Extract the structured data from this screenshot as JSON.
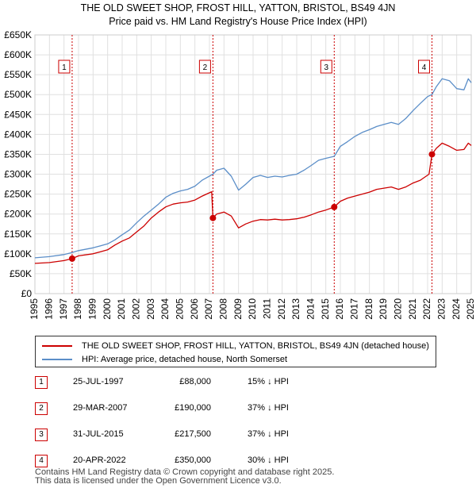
{
  "title_line1": "THE OLD SWEET SHOP, FROST HILL, YATTON, BRISTOL, BS49 4JN",
  "title_line2": "Price paid vs. HM Land Registry's House Price Index (HPI)",
  "colors": {
    "property": "#cc0000",
    "hpi": "#5b8ec8",
    "grid": "#e0e0e0",
    "vline": "#cc0000"
  },
  "chart_data": {
    "type": "line",
    "xlim": [
      1995,
      2025
    ],
    "ylim": [
      0,
      650000
    ],
    "xticks": [
      1995,
      1996,
      1997,
      1998,
      1999,
      2000,
      2001,
      2002,
      2003,
      2004,
      2005,
      2006,
      2007,
      2008,
      2009,
      2010,
      2011,
      2012,
      2013,
      2014,
      2015,
      2016,
      2017,
      2018,
      2019,
      2020,
      2021,
      2022,
      2023,
      2024,
      2025
    ],
    "yticks": [
      0,
      50000,
      100000,
      150000,
      200000,
      250000,
      300000,
      350000,
      400000,
      450000,
      500000,
      550000,
      600000,
      650000
    ],
    "ytick_labels": [
      "£0",
      "£50K",
      "£100K",
      "£150K",
      "£200K",
      "£250K",
      "£300K",
      "£350K",
      "£400K",
      "£450K",
      "£500K",
      "£550K",
      "£600K",
      "£650K"
    ],
    "series": [
      {
        "name": "THE OLD SWEET SHOP, FROST HILL, YATTON, BRISTOL, BS49 4JN (detached house)",
        "color": "#cc0000",
        "points": [
          [
            1995,
            76000
          ],
          [
            1996,
            78000
          ],
          [
            1997,
            83000
          ],
          [
            1997.56,
            88000
          ],
          [
            1998,
            95000
          ],
          [
            1999,
            100000
          ],
          [
            2000,
            110000
          ],
          [
            2000.5,
            122000
          ],
          [
            2001,
            132000
          ],
          [
            2001.5,
            140000
          ],
          [
            2002,
            155000
          ],
          [
            2002.5,
            170000
          ],
          [
            2003,
            190000
          ],
          [
            2003.5,
            205000
          ],
          [
            2004,
            218000
          ],
          [
            2004.5,
            225000
          ],
          [
            2005,
            228000
          ],
          [
            2005.5,
            230000
          ],
          [
            2006,
            235000
          ],
          [
            2006.5,
            245000
          ],
          [
            2007.15,
            256000
          ],
          [
            2007.24,
            190000
          ],
          [
            2007.5,
            200000
          ],
          [
            2008,
            205000
          ],
          [
            2008.5,
            195000
          ],
          [
            2009,
            165000
          ],
          [
            2009.5,
            175000
          ],
          [
            2010,
            182000
          ],
          [
            2010.5,
            186000
          ],
          [
            2011,
            185000
          ],
          [
            2011.5,
            187000
          ],
          [
            2012,
            185000
          ],
          [
            2012.5,
            186000
          ],
          [
            2013,
            188000
          ],
          [
            2013.5,
            192000
          ],
          [
            2014,
            198000
          ],
          [
            2014.5,
            205000
          ],
          [
            2015,
            210000
          ],
          [
            2015.58,
            217500
          ],
          [
            2016,
            232000
          ],
          [
            2016.5,
            240000
          ],
          [
            2017,
            245000
          ],
          [
            2017.5,
            250000
          ],
          [
            2018,
            255000
          ],
          [
            2018.5,
            262000
          ],
          [
            2019,
            265000
          ],
          [
            2019.5,
            268000
          ],
          [
            2020,
            262000
          ],
          [
            2020.5,
            268000
          ],
          [
            2021,
            278000
          ],
          [
            2021.5,
            285000
          ],
          [
            2022.1,
            300000
          ],
          [
            2022.3,
            350000
          ],
          [
            2022.6,
            365000
          ],
          [
            2023,
            378000
          ],
          [
            2023.5,
            370000
          ],
          [
            2024,
            360000
          ],
          [
            2024.5,
            362000
          ],
          [
            2024.8,
            378000
          ],
          [
            2025,
            372000
          ]
        ]
      },
      {
        "name": "HPI: Average price, detached house, North Somerset",
        "color": "#5b8ec8",
        "points": [
          [
            1995,
            90000
          ],
          [
            1996,
            93000
          ],
          [
            1997,
            98000
          ],
          [
            1997.56,
            103000
          ],
          [
            1998,
            108000
          ],
          [
            1999,
            115000
          ],
          [
            2000,
            125000
          ],
          [
            2000.5,
            135000
          ],
          [
            2001,
            148000
          ],
          [
            2001.5,
            160000
          ],
          [
            2002,
            178000
          ],
          [
            2002.5,
            195000
          ],
          [
            2003,
            210000
          ],
          [
            2003.5,
            225000
          ],
          [
            2004,
            242000
          ],
          [
            2004.5,
            252000
          ],
          [
            2005,
            258000
          ],
          [
            2005.5,
            262000
          ],
          [
            2006,
            270000
          ],
          [
            2006.5,
            285000
          ],
          [
            2007.24,
            300000
          ],
          [
            2007.5,
            310000
          ],
          [
            2008,
            315000
          ],
          [
            2008.5,
            295000
          ],
          [
            2009,
            260000
          ],
          [
            2009.5,
            275000
          ],
          [
            2010,
            292000
          ],
          [
            2010.5,
            297000
          ],
          [
            2011,
            292000
          ],
          [
            2011.5,
            295000
          ],
          [
            2012,
            293000
          ],
          [
            2012.5,
            297000
          ],
          [
            2013,
            300000
          ],
          [
            2013.5,
            310000
          ],
          [
            2014,
            322000
          ],
          [
            2014.5,
            335000
          ],
          [
            2015,
            340000
          ],
          [
            2015.58,
            345000
          ],
          [
            2016,
            370000
          ],
          [
            2016.5,
            382000
          ],
          [
            2017,
            395000
          ],
          [
            2017.5,
            405000
          ],
          [
            2018,
            412000
          ],
          [
            2018.5,
            420000
          ],
          [
            2019,
            425000
          ],
          [
            2019.5,
            430000
          ],
          [
            2020,
            425000
          ],
          [
            2020.5,
            440000
          ],
          [
            2021,
            460000
          ],
          [
            2021.5,
            478000
          ],
          [
            2022,
            495000
          ],
          [
            2022.3,
            500000
          ],
          [
            2022.6,
            520000
          ],
          [
            2023,
            540000
          ],
          [
            2023.5,
            535000
          ],
          [
            2024,
            515000
          ],
          [
            2024.5,
            512000
          ],
          [
            2024.8,
            540000
          ],
          [
            2025,
            530000
          ]
        ]
      }
    ],
    "markers": [
      {
        "label": "1",
        "x": 1997.56,
        "y": 88000
      },
      {
        "label": "2",
        "x": 2007.24,
        "y": 190000
      },
      {
        "label": "3",
        "x": 2015.58,
        "y": 217500
      },
      {
        "label": "4",
        "x": 2022.3,
        "y": 350000
      }
    ]
  },
  "legend": {
    "property": "THE OLD SWEET SHOP, FROST HILL, YATTON, BRISTOL, BS49 4JN (detached house)",
    "hpi": "HPI: Average price, detached house, North Somerset"
  },
  "transactions": [
    {
      "num": "1",
      "date": "25-JUL-1997",
      "price": "£88,000",
      "hpi": "15% ↓ HPI"
    },
    {
      "num": "2",
      "date": "29-MAR-2007",
      "price": "£190,000",
      "hpi": "37% ↓ HPI"
    },
    {
      "num": "3",
      "date": "31-JUL-2015",
      "price": "£217,500",
      "hpi": "37% ↓ HPI"
    },
    {
      "num": "4",
      "date": "20-APR-2022",
      "price": "£350,000",
      "hpi": "30% ↓ HPI"
    }
  ],
  "footer": {
    "line1": "Contains HM Land Registry data © Crown copyright and database right 2025.",
    "line2": "This data is licensed under the Open Government Licence v3.0."
  }
}
